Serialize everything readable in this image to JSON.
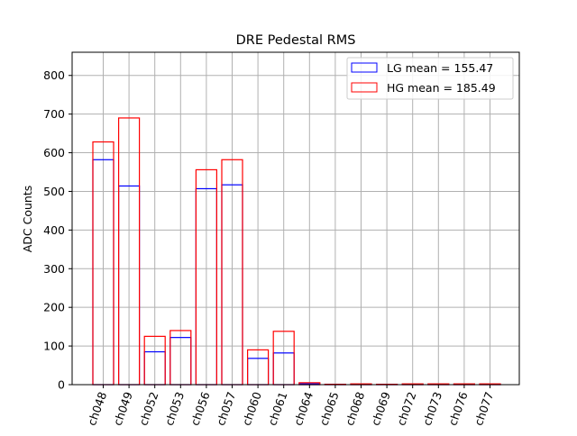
{
  "chart_data": {
    "type": "bar",
    "title": "DRE Pedestal RMS",
    "xlabel": "",
    "ylabel": "ADC Counts",
    "ylim": [
      0,
      860
    ],
    "yticks": [
      0,
      100,
      200,
      300,
      400,
      500,
      600,
      700,
      800
    ],
    "grid": true,
    "legend_position": "top-right",
    "categories": [
      "ch048",
      "ch049",
      "ch052",
      "ch053",
      "ch056",
      "ch057",
      "ch060",
      "ch061",
      "ch064",
      "ch065",
      "ch068",
      "ch069",
      "ch072",
      "ch073",
      "ch076",
      "ch077"
    ],
    "series": [
      {
        "name": "LG mean = 155.47",
        "color": "#0000ff",
        "style": "outline-bar",
        "values": [
          582,
          514,
          85,
          122,
          507,
          517,
          68,
          82,
          2,
          1,
          1,
          1,
          1,
          1,
          1,
          1
        ]
      },
      {
        "name": "HG mean = 185.49",
        "color": "#ff0000",
        "style": "outline-bar",
        "values": [
          628,
          690,
          125,
          140,
          556,
          582,
          90,
          138,
          5,
          1,
          2,
          1,
          2,
          2,
          2,
          2
        ]
      }
    ]
  }
}
